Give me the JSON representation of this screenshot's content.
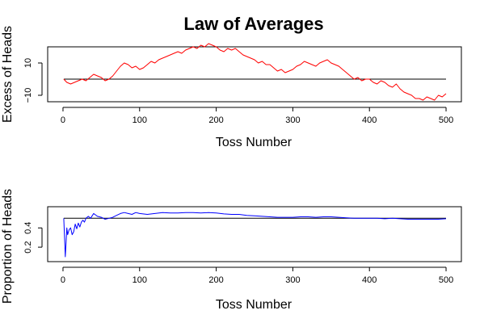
{
  "title": "Law of Averages",
  "chart_data": [
    {
      "type": "line",
      "xlabel": "Toss Number",
      "ylabel": "Excess of Heads",
      "xlim": [
        -20,
        520
      ],
      "ylim": [
        -14,
        20
      ],
      "xticks": [
        0,
        100,
        200,
        300,
        400,
        500
      ],
      "yticks": [
        -10,
        10
      ],
      "reference_line": 0,
      "grid": false,
      "series_color": "#ff0000",
      "reference_color": "#000000",
      "series": [
        {
          "x": [
            1,
            5,
            10,
            15,
            20,
            25,
            30,
            35,
            40,
            45,
            50,
            55,
            60,
            65,
            70,
            75,
            80,
            85,
            90,
            95,
            100,
            105,
            110,
            115,
            120,
            125,
            130,
            135,
            140,
            145,
            150,
            155,
            160,
            165,
            170,
            175,
            180,
            185,
            190,
            195,
            200,
            205,
            210,
            215,
            220,
            225,
            230,
            235,
            240,
            245,
            250,
            255,
            260,
            265,
            270,
            275,
            280,
            285,
            290,
            295,
            300,
            305,
            310,
            315,
            320,
            325,
            330,
            335,
            340,
            345,
            350,
            355,
            360,
            365,
            370,
            375,
            380,
            385,
            390,
            395,
            400,
            405,
            410,
            415,
            420,
            425,
            430,
            435,
            440,
            445,
            450,
            455,
            460,
            465,
            470,
            475,
            480,
            485,
            490,
            495,
            500
          ],
          "y": [
            0,
            -2,
            -3,
            -2,
            -1,
            0,
            -1,
            1,
            3,
            2,
            1,
            -1,
            0,
            2,
            5,
            8,
            10,
            9,
            7,
            8,
            6,
            7,
            9,
            11,
            10,
            12,
            13,
            14,
            15,
            16,
            17,
            16,
            18,
            19,
            20,
            19,
            21,
            20,
            22,
            21,
            20,
            18,
            17,
            19,
            18,
            19,
            17,
            15,
            14,
            13,
            12,
            10,
            11,
            9,
            9,
            7,
            5,
            6,
            4,
            5,
            6,
            8,
            9,
            11,
            10,
            9,
            8,
            10,
            11,
            12,
            10,
            9,
            8,
            6,
            4,
            2,
            0,
            1,
            -1,
            0,
            0,
            -2,
            -3,
            -1,
            -2,
            -4,
            -5,
            -3,
            -6,
            -8,
            -9,
            -10,
            -12,
            -12,
            -13,
            -11,
            -12,
            -13,
            -10,
            -11,
            -9
          ]
        }
      ]
    },
    {
      "type": "line",
      "xlabel": "Toss Number",
      "ylabel": "Proportion of Heads",
      "xlim": [
        -20,
        520
      ],
      "ylim": [
        0.05,
        0.62
      ],
      "xticks": [
        0,
        100,
        200,
        300,
        400,
        500
      ],
      "yticks": [
        0.2,
        0.4
      ],
      "reference_line": 0.5,
      "grid": false,
      "series_color": "#0000ff",
      "reference_color": "#000000",
      "series": [
        {
          "x": [
            1,
            2,
            3,
            4,
            5,
            6,
            8,
            10,
            12,
            14,
            16,
            18,
            20,
            22,
            24,
            26,
            28,
            30,
            33,
            36,
            40,
            45,
            50,
            55,
            60,
            65,
            70,
            75,
            80,
            85,
            90,
            95,
            100,
            110,
            120,
            130,
            140,
            150,
            160,
            170,
            180,
            190,
            200,
            210,
            220,
            230,
            240,
            250,
            260,
            270,
            280,
            290,
            300,
            310,
            320,
            330,
            340,
            350,
            360,
            370,
            380,
            390,
            400,
            410,
            420,
            430,
            440,
            450,
            460,
            470,
            480,
            490,
            500
          ],
          "y": [
            0.5,
            0.3,
            0.1,
            0.25,
            0.4,
            0.33,
            0.38,
            0.4,
            0.33,
            0.36,
            0.44,
            0.39,
            0.45,
            0.41,
            0.46,
            0.48,
            0.46,
            0.5,
            0.52,
            0.5,
            0.55,
            0.52,
            0.51,
            0.49,
            0.5,
            0.51,
            0.53,
            0.55,
            0.56,
            0.55,
            0.54,
            0.56,
            0.55,
            0.54,
            0.55,
            0.56,
            0.555,
            0.555,
            0.56,
            0.56,
            0.555,
            0.56,
            0.555,
            0.545,
            0.54,
            0.54,
            0.53,
            0.525,
            0.52,
            0.515,
            0.51,
            0.51,
            0.51,
            0.515,
            0.515,
            0.51,
            0.515,
            0.515,
            0.51,
            0.505,
            0.5,
            0.5,
            0.5,
            0.5,
            0.495,
            0.5,
            0.495,
            0.49,
            0.49,
            0.49,
            0.49,
            0.49,
            0.495
          ]
        }
      ]
    }
  ]
}
